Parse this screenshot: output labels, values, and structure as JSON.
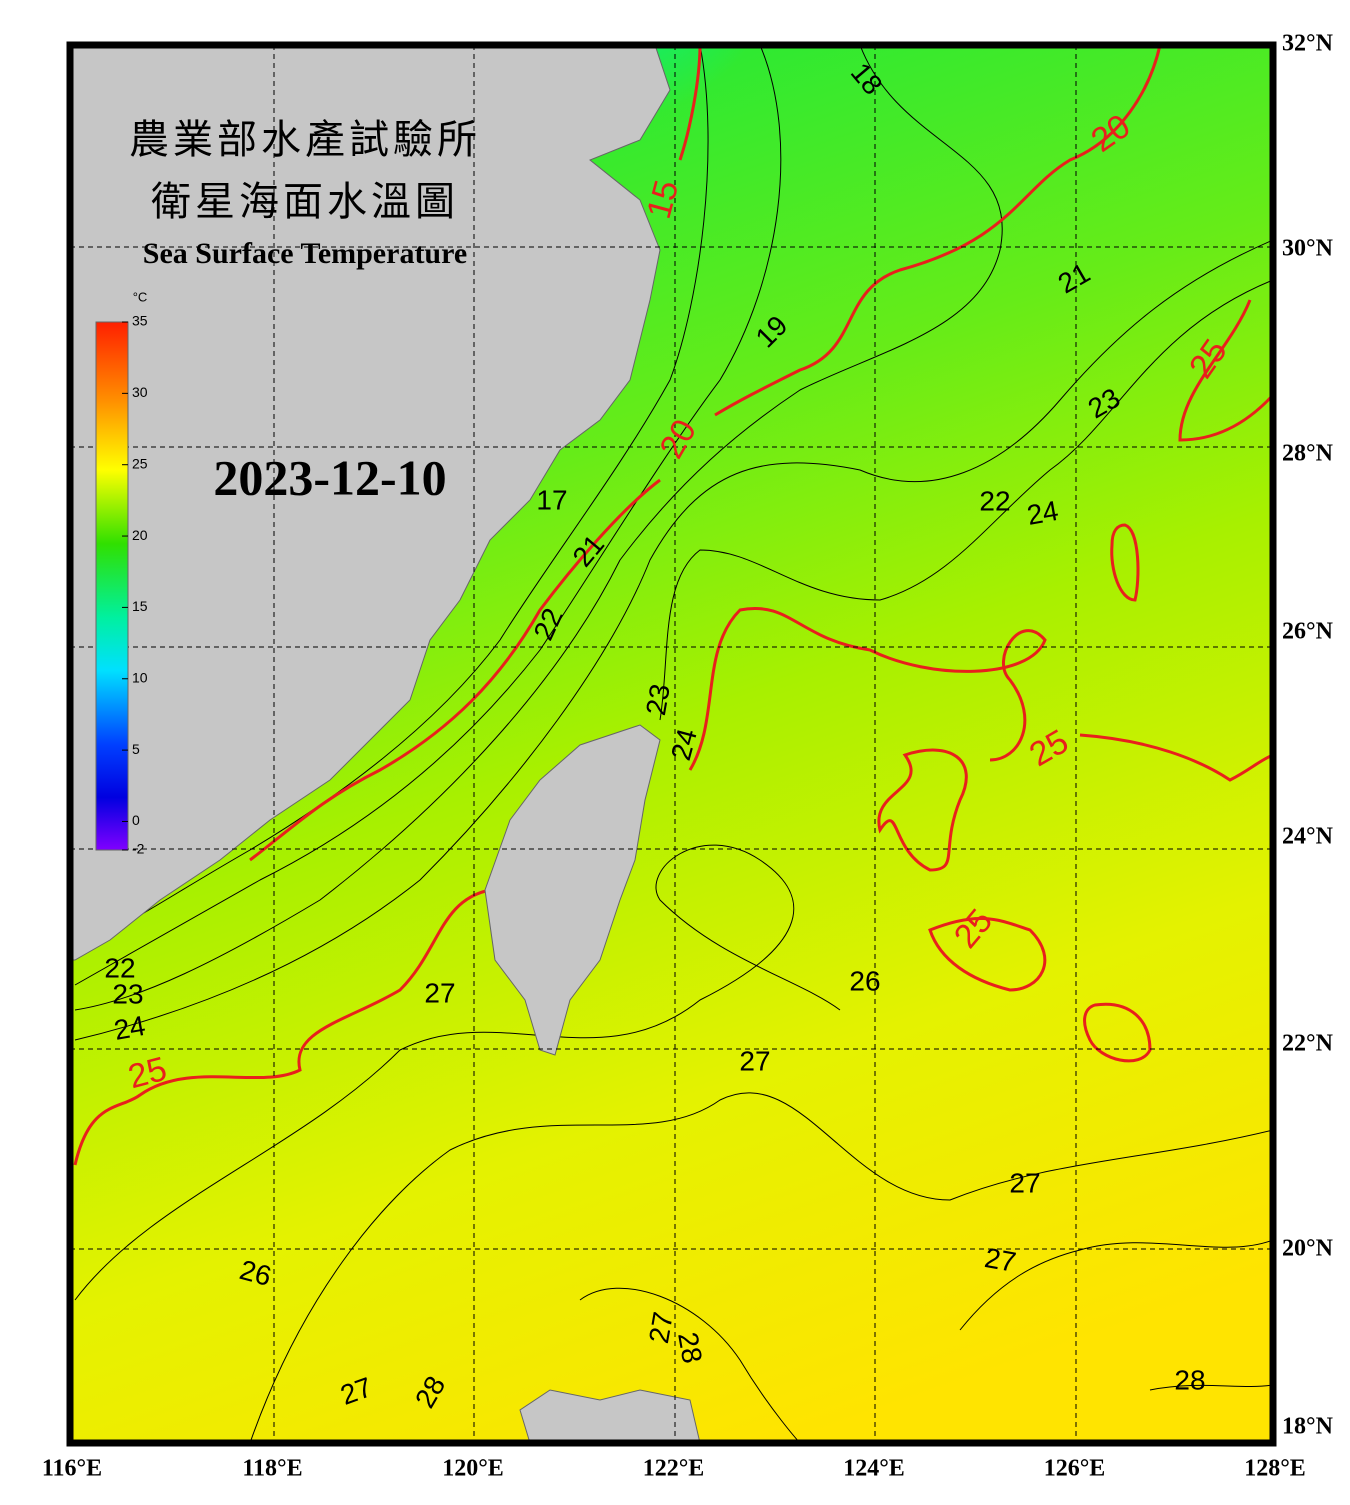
{
  "header": {
    "title_zh_1": "農業部水產試驗所",
    "title_zh_2": "衛星海面水溫圖",
    "title_en": "Sea Surface Temperature",
    "date": "2023-12-10"
  },
  "colorbar": {
    "unit": "°C",
    "min": -2,
    "max": 35,
    "ticks": [
      35,
      30,
      25,
      20,
      15,
      10,
      5,
      0,
      -2
    ]
  },
  "lat_labels": [
    "32°N",
    "30°N",
    "28°N",
    "26°N",
    "24°N",
    "22°N",
    "20°N",
    "18°N"
  ],
  "lon_labels": [
    "116°E",
    "118°E",
    "120°E",
    "122°E",
    "124°E",
    "126°E",
    "128°E"
  ],
  "contour_labels": [
    "18",
    "20",
    "15",
    "21",
    "19",
    "25",
    "23",
    "20",
    "17",
    "22",
    "24",
    "21",
    "22",
    "23",
    "24",
    "25",
    "25",
    "26",
    "27",
    "22",
    "23",
    "24",
    "25",
    "27",
    "27",
    "26",
    "27",
    "27",
    "28",
    "27",
    "28",
    "28"
  ]
}
